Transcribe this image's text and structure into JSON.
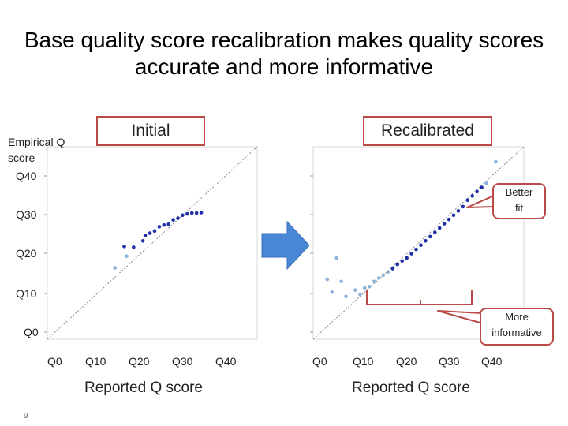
{
  "title": "Base quality score recalibration makes quality scores accurate and more informative",
  "slide_number": "9",
  "y_axis_label_lines": [
    "Empirical Q",
    "score"
  ],
  "callouts": {
    "better_fit": [
      "Better",
      "fit"
    ],
    "more_informative": [
      "More",
      "informative"
    ]
  },
  "colors": {
    "accent": "#b94a48",
    "dark_points": "#1f2fa8",
    "light_points": "#8fb4d9",
    "arrow": "#4a86d6"
  },
  "chart_data": [
    {
      "type": "scatter",
      "title": "Initial",
      "xlabel": "Reported Q score",
      "ylabel": "Empirical Q score",
      "xticks": [
        "Q0",
        "Q10",
        "Q20",
        "Q30",
        "Q40"
      ],
      "yticks": [
        "Q40",
        "Q30",
        "Q20",
        "Q10",
        "Q0"
      ],
      "xlim": [
        0,
        45
      ],
      "ylim": [
        0,
        45
      ],
      "reference_line": "diagonal",
      "points": [
        {
          "x": 14.5,
          "y": 16.7,
          "shade": "light"
        },
        {
          "x": 17.0,
          "y": 19.4,
          "shade": "light"
        },
        {
          "x": 16.5,
          "y": 21.7,
          "shade": "dark"
        },
        {
          "x": 18.5,
          "y": 21.5,
          "shade": "dark"
        },
        {
          "x": 20.5,
          "y": 23.0,
          "shade": "dark"
        },
        {
          "x": 21.0,
          "y": 24.3,
          "shade": "dark"
        },
        {
          "x": 22.0,
          "y": 24.8,
          "shade": "dark"
        },
        {
          "x": 23.0,
          "y": 25.3,
          "shade": "dark"
        },
        {
          "x": 24.0,
          "y": 26.3,
          "shade": "dark"
        },
        {
          "x": 25.0,
          "y": 26.7,
          "shade": "dark"
        },
        {
          "x": 26.0,
          "y": 26.9,
          "shade": "dark"
        },
        {
          "x": 27.0,
          "y": 27.9,
          "shade": "dark"
        },
        {
          "x": 28.0,
          "y": 28.3,
          "shade": "dark"
        },
        {
          "x": 29.0,
          "y": 29.0,
          "shade": "dark"
        },
        {
          "x": 30.0,
          "y": 29.3,
          "shade": "dark"
        },
        {
          "x": 31.0,
          "y": 29.5,
          "shade": "dark"
        },
        {
          "x": 32.0,
          "y": 29.5,
          "shade": "dark"
        },
        {
          "x": 33.0,
          "y": 29.6,
          "shade": "dark"
        }
      ]
    },
    {
      "type": "scatter",
      "title": "Recalibrated",
      "xlabel": "Reported Q score",
      "ylabel": "Empirical Q score",
      "xticks": [
        "Q0",
        "Q10",
        "Q20",
        "Q30",
        "Q40"
      ],
      "yticks": [
        "Q40",
        "Q30",
        "Q20",
        "Q10",
        "Q0"
      ],
      "xlim": [
        0,
        45
      ],
      "ylim": [
        0,
        45
      ],
      "reference_line": "diagonal",
      "points": [
        {
          "x": 3.0,
          "y": 14.0,
          "shade": "light"
        },
        {
          "x": 5.0,
          "y": 19.0,
          "shade": "light"
        },
        {
          "x": 6.0,
          "y": 13.5,
          "shade": "light"
        },
        {
          "x": 4.0,
          "y": 11.0,
          "shade": "light"
        },
        {
          "x": 7.0,
          "y": 10.0,
          "shade": "light"
        },
        {
          "x": 9.0,
          "y": 11.5,
          "shade": "light"
        },
        {
          "x": 10.0,
          "y": 10.5,
          "shade": "light"
        },
        {
          "x": 11.0,
          "y": 12.0,
          "shade": "light"
        },
        {
          "x": 12.0,
          "y": 12.3,
          "shade": "light"
        },
        {
          "x": 13.0,
          "y": 13.5,
          "shade": "light"
        },
        {
          "x": 14.0,
          "y": 14.3,
          "shade": "light"
        },
        {
          "x": 15.0,
          "y": 15.0,
          "shade": "light"
        },
        {
          "x": 16.0,
          "y": 15.7,
          "shade": "light"
        },
        {
          "x": 17.0,
          "y": 16.5,
          "shade": "dark"
        },
        {
          "x": 18.0,
          "y": 17.5,
          "shade": "dark"
        },
        {
          "x": 19.0,
          "y": 18.3,
          "shade": "dark"
        },
        {
          "x": 20.0,
          "y": 19.0,
          "shade": "dark"
        },
        {
          "x": 21.0,
          "y": 20.0,
          "shade": "dark"
        },
        {
          "x": 22.0,
          "y": 21.0,
          "shade": "dark"
        },
        {
          "x": 23.0,
          "y": 22.0,
          "shade": "dark"
        },
        {
          "x": 24.0,
          "y": 23.0,
          "shade": "dark"
        },
        {
          "x": 25.0,
          "y": 24.0,
          "shade": "dark"
        },
        {
          "x": 26.0,
          "y": 25.0,
          "shade": "dark"
        },
        {
          "x": 27.0,
          "y": 26.0,
          "shade": "dark"
        },
        {
          "x": 28.0,
          "y": 27.0,
          "shade": "dark"
        },
        {
          "x": 29.0,
          "y": 28.0,
          "shade": "dark"
        },
        {
          "x": 30.0,
          "y": 29.0,
          "shade": "dark"
        },
        {
          "x": 31.0,
          "y": 30.0,
          "shade": "dark"
        },
        {
          "x": 32.0,
          "y": 31.0,
          "shade": "dark"
        },
        {
          "x": 33.0,
          "y": 32.5,
          "shade": "dark"
        },
        {
          "x": 34.0,
          "y": 33.5,
          "shade": "dark"
        },
        {
          "x": 35.0,
          "y": 34.5,
          "shade": "dark"
        },
        {
          "x": 36.0,
          "y": 35.5,
          "shade": "dark"
        },
        {
          "x": 37.0,
          "y": 36.5,
          "shade": "light"
        },
        {
          "x": 39.0,
          "y": 41.5,
          "shade": "light"
        }
      ]
    }
  ]
}
